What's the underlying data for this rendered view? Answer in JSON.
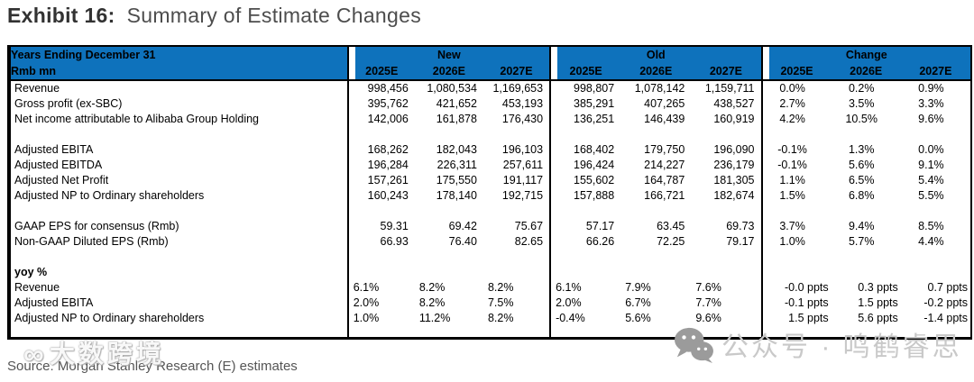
{
  "title": {
    "exhibit_label": "Exhibit 16:",
    "subtitle": "Summary of Estimate Changes"
  },
  "table": {
    "corner": {
      "line1": "Years Ending December 31",
      "line2": "Rmb mn"
    },
    "header": {
      "groups": [
        {
          "label": "New",
          "years": [
            "2025E",
            "2026E",
            "2027E"
          ]
        },
        {
          "label": "Old",
          "years": [
            "2025E",
            "2026E",
            "2027E"
          ]
        },
        {
          "label": "Change",
          "years": [
            "2025E",
            "2026E",
            "2027E"
          ]
        }
      ]
    },
    "rows": [
      {
        "kind": "num",
        "label": "Revenue",
        "new": [
          "998,456",
          "1,080,534",
          "1,169,653"
        ],
        "old": [
          "998,807",
          "1,078,142",
          "1,159,711"
        ],
        "change": [
          "0.0%",
          "0.2%",
          "0.9%"
        ]
      },
      {
        "kind": "num",
        "label": "Gross profit (ex-SBC)",
        "new": [
          "395,762",
          "421,652",
          "453,193"
        ],
        "old": [
          "385,291",
          "407,265",
          "438,527"
        ],
        "change": [
          "2.7%",
          "3.5%",
          "3.3%"
        ]
      },
      {
        "kind": "num",
        "label": "Net income attributable to Alibaba Group Holding",
        "new": [
          "142,006",
          "161,878",
          "176,430"
        ],
        "old": [
          "136,251",
          "146,439",
          "160,919"
        ],
        "change": [
          "4.2%",
          "10.5%",
          "9.6%"
        ]
      },
      {
        "kind": "blank"
      },
      {
        "kind": "num",
        "label": "Adjusted EBITA",
        "new": [
          "168,262",
          "182,043",
          "196,103"
        ],
        "old": [
          "168,402",
          "179,750",
          "196,090"
        ],
        "change": [
          "-0.1%",
          "1.3%",
          "0.0%"
        ]
      },
      {
        "kind": "num",
        "label": "Adjusted EBITDA",
        "new": [
          "196,284",
          "226,311",
          "257,611"
        ],
        "old": [
          "196,424",
          "214,227",
          "236,179"
        ],
        "change": [
          "-0.1%",
          "5.6%",
          "9.1%"
        ]
      },
      {
        "kind": "num",
        "label": "Adjusted Net Profit",
        "new": [
          "157,261",
          "175,550",
          "191,117"
        ],
        "old": [
          "155,602",
          "164,787",
          "181,305"
        ],
        "change": [
          "1.1%",
          "6.5%",
          "5.4%"
        ]
      },
      {
        "kind": "num",
        "label": "Adjusted NP to Ordinary shareholders",
        "new": [
          "160,243",
          "178,140",
          "192,715"
        ],
        "old": [
          "157,888",
          "166,721",
          "182,674"
        ],
        "change": [
          "1.5%",
          "6.8%",
          "5.5%"
        ]
      },
      {
        "kind": "blank"
      },
      {
        "kind": "num",
        "label": "GAAP EPS for consensus (Rmb)",
        "new": [
          "59.31",
          "69.42",
          "75.67"
        ],
        "old": [
          "57.17",
          "63.45",
          "69.73"
        ],
        "change": [
          "3.7%",
          "9.4%",
          "8.5%"
        ]
      },
      {
        "kind": "num",
        "label": "Non-GAAP Diluted EPS (Rmb)",
        "new": [
          "66.93",
          "76.40",
          "82.65"
        ],
        "old": [
          "66.26",
          "72.25",
          "79.17"
        ],
        "change": [
          "1.0%",
          "5.7%",
          "4.4%"
        ]
      },
      {
        "kind": "blank"
      },
      {
        "kind": "section",
        "label": "yoy %"
      },
      {
        "kind": "pct",
        "label": "Revenue",
        "new": [
          "6.1%",
          "8.2%",
          "8.2%"
        ],
        "old": [
          "6.1%",
          "7.9%",
          "7.6%"
        ],
        "change": [
          "-0.0 ppts",
          "0.3 ppts",
          "0.7 ppts"
        ]
      },
      {
        "kind": "pct",
        "label": "Adjusted EBITA",
        "new": [
          "2.0%",
          "8.2%",
          "7.5%"
        ],
        "old": [
          "2.0%",
          "6.7%",
          "7.7%"
        ],
        "change": [
          "-0.1 ppts",
          "1.5 ppts",
          "-0.2 ppts"
        ]
      },
      {
        "kind": "pct",
        "label": "Adjusted NP to Ordinary shareholders",
        "new": [
          "1.0%",
          "11.2%",
          "8.2%"
        ],
        "old": [
          "-0.4%",
          "5.6%",
          "9.6%"
        ],
        "change": [
          "1.5 ppts",
          "5.6 ppts",
          "-1.4 ppts"
        ]
      },
      {
        "kind": "spacer"
      }
    ]
  },
  "source_note": "Source: Morgan Stanley Research (E) estimates",
  "watermarks": {
    "left": {
      "logo_icon": "infinity-logo-icon",
      "logo_glyph": "∞",
      "text": "大数跨境"
    },
    "right": {
      "icon": "wechat-icon",
      "text": "公众号 · 鸣鹤睿思"
    }
  },
  "colors": {
    "header_blue": "#0E72BC",
    "border_black": "#000000",
    "title_dark": "#323232",
    "title_gray": "#4D4D4D",
    "source_gray": "#555555",
    "watermark_text_gray": "#C9C9C9",
    "watermark_icon_gray": "#9B9B9B"
  }
}
